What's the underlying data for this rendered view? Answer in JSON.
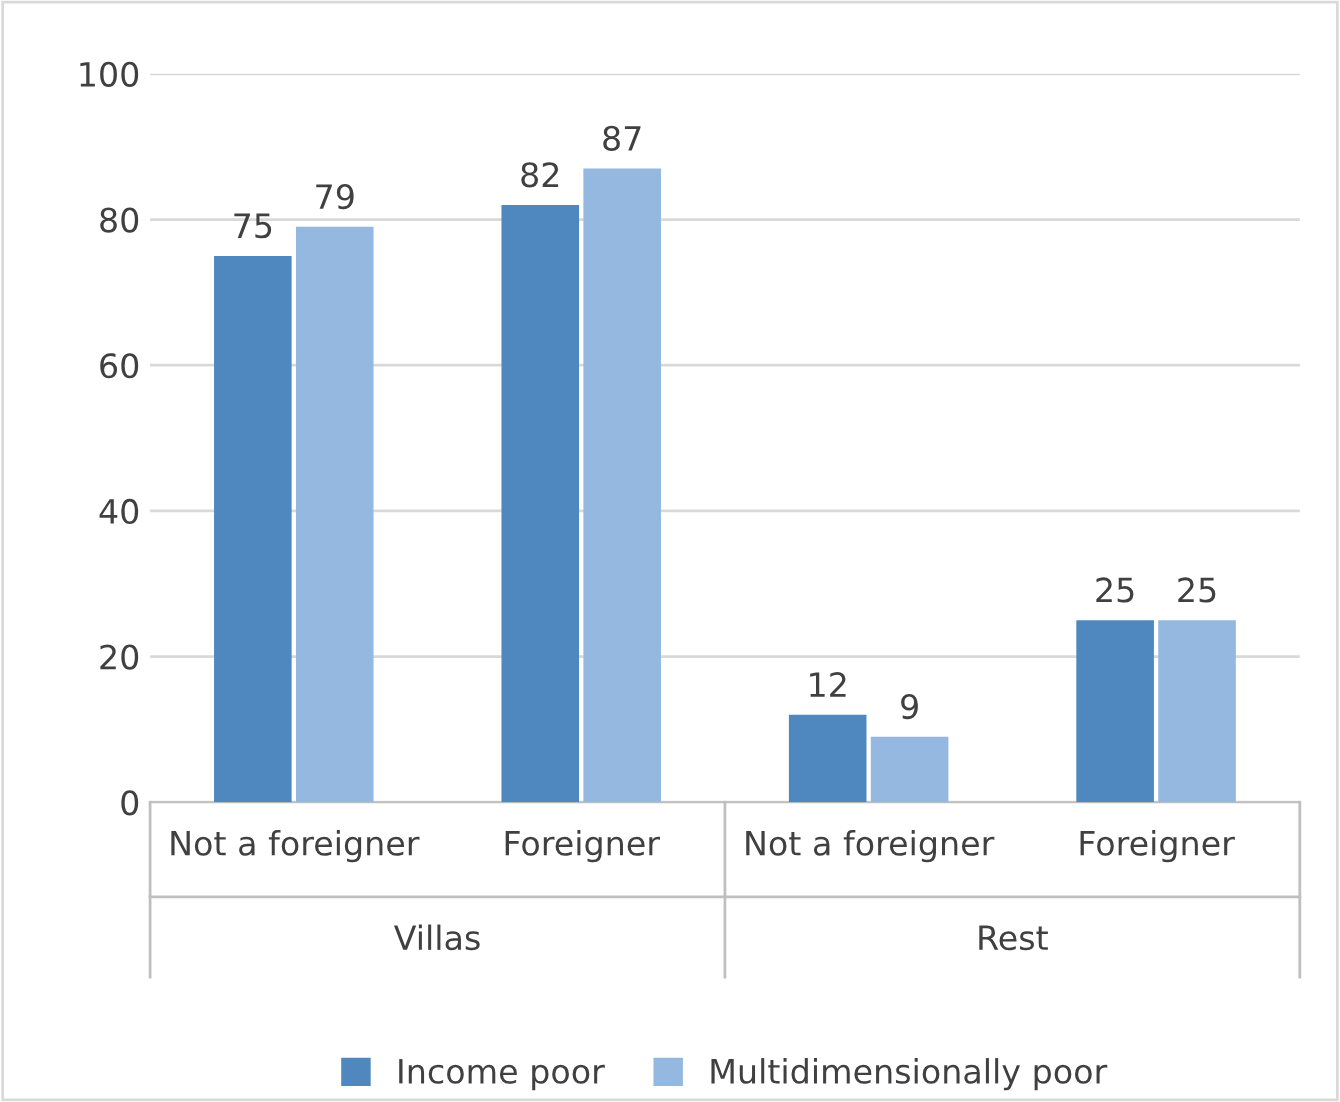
{
  "chart_data": {
    "type": "bar",
    "categories": [
      "Not a foreigner",
      "Foreigner",
      "Not a foreigner",
      "Foreigner"
    ],
    "annotations": [
      "Villas",
      "Rest"
    ],
    "series": [
      {
        "name": "Income poor",
        "color": "#4f88bf",
        "values": [
          75,
          82,
          12,
          25
        ]
      },
      {
        "name": "Multidimensionally poor",
        "color": "#95b8e0",
        "values": [
          79,
          87,
          9,
          25
        ]
      }
    ],
    "ylim": [
      0,
      100
    ],
    "yticks": [
      0,
      20,
      40,
      60,
      80,
      100
    ],
    "grid": "y",
    "legend": "bottom",
    "data_labels": true
  }
}
